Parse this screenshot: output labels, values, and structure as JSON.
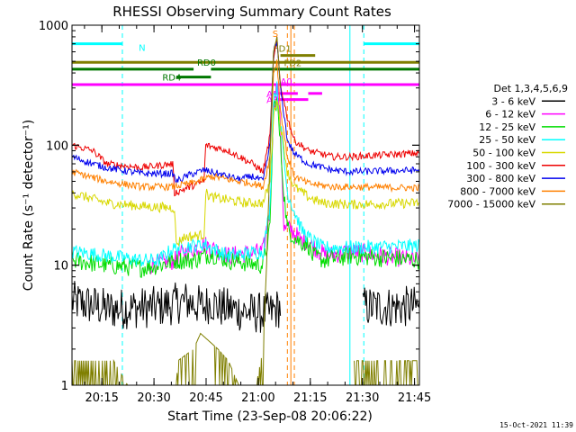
{
  "chart_data": {
    "type": "line",
    "title": "RHESSI Observing Summary Count Rates",
    "xlabel": "Start Time (23-Sep-08 20:06:22)",
    "ylabel": "Count Rate (s⁻¹ detector⁻¹)",
    "yscale": "log",
    "ylim": [
      1,
      1000
    ],
    "xlim_minutes_after_start": [
      0,
      100
    ],
    "yticks": [
      {
        "value": 1,
        "label": "1"
      },
      {
        "value": 10,
        "label": "10"
      },
      {
        "value": 100,
        "label": "100"
      },
      {
        "value": 1000,
        "label": "1000"
      }
    ],
    "xticks": [
      {
        "minute": 8.6,
        "label": "20:15"
      },
      {
        "minute": 23.6,
        "label": "20:30"
      },
      {
        "minute": 38.6,
        "label": "20:45"
      },
      {
        "minute": 53.6,
        "label": "21:00"
      },
      {
        "minute": 68.6,
        "label": "21:15"
      },
      {
        "minute": 83.6,
        "label": "21:30"
      },
      {
        "minute": 98.6,
        "label": "21:45"
      }
    ],
    "timestamp": "15-Oct-2021 11:39",
    "legend": {
      "placement": "right",
      "title": "Det 1,3,4,5,6,9",
      "entries": [
        {
          "label": "3 - 6 keV",
          "color": "#000000"
        },
        {
          "label": "6 - 12 keV",
          "color": "#ff00ff"
        },
        {
          "label": "12 - 25 keV",
          "color": "#00dd00"
        },
        {
          "label": "25 - 50 keV",
          "color": "#00ffff"
        },
        {
          "label": "50 - 100 keV",
          "color": "#d8d800"
        },
        {
          "label": "100 - 300 keV",
          "color": "#ee0000"
        },
        {
          "label": "300 - 800 keV",
          "color": "#0000ee"
        },
        {
          "label": "800 - 7000 keV",
          "color": "#ff8000"
        },
        {
          "label": "7000 - 15000 keV",
          "color": "#7f7f00"
        }
      ]
    },
    "series": [
      {
        "name": "3 - 6 keV",
        "color": "#000000",
        "noise": 1.5,
        "noise_from": 0,
        "points": [
          [
            0,
            5
          ],
          [
            8,
            4.5
          ],
          [
            10,
            4.3
          ],
          [
            25,
            4.5
          ],
          [
            33,
            5
          ],
          [
            38,
            4.5
          ],
          [
            40,
            5
          ],
          [
            42,
            4.5
          ],
          [
            52,
            4
          ],
          [
            54,
            4
          ],
          [
            57,
            4
          ],
          [
            60,
            4.5
          ],
          [
            66.5,
            null
          ],
          [
            83,
            null
          ],
          [
            83.5,
            4.5
          ],
          [
            100,
            4.5
          ]
        ]
      },
      {
        "name": "6 - 12 keV",
        "color": "#ff00ff",
        "noise": 1.2,
        "noise_from": 22,
        "points": [
          [
            22,
            10
          ],
          [
            30,
            11
          ],
          [
            30.5,
            12
          ],
          [
            38,
            15
          ],
          [
            40,
            14
          ],
          [
            45,
            12
          ],
          [
            55,
            13
          ],
          [
            57,
            30
          ],
          [
            58,
            200
          ],
          [
            59,
            330
          ],
          [
            60,
            150
          ],
          [
            61,
            20
          ],
          [
            63,
            20
          ],
          [
            66,
            16
          ],
          [
            68,
            16
          ],
          [
            68.5,
            15
          ],
          [
            73,
            12
          ],
          [
            80,
            13
          ],
          [
            100,
            11
          ]
        ]
      },
      {
        "name": "12 - 25 keV",
        "color": "#00dd00",
        "noise": 1.2,
        "noise_from": 0,
        "points": [
          [
            0,
            11
          ],
          [
            10,
            10
          ],
          [
            20,
            9.5
          ],
          [
            25,
            10
          ],
          [
            30,
            11
          ],
          [
            35,
            11
          ],
          [
            40,
            12.5
          ],
          [
            45,
            11
          ],
          [
            55,
            10
          ],
          [
            57,
            20
          ],
          [
            58,
            200
          ],
          [
            59,
            240
          ],
          [
            60,
            100
          ],
          [
            61,
            40
          ],
          [
            62,
            20
          ],
          [
            65,
            16
          ],
          [
            68,
            15
          ],
          [
            69,
            12
          ],
          [
            73,
            11
          ],
          [
            80,
            12
          ],
          [
            100,
            11
          ]
        ]
      },
      {
        "name": "25 - 50 keV",
        "color": "#00ffff",
        "noise": 1.15,
        "noise_from": 0,
        "points": [
          [
            0,
            13
          ],
          [
            10,
            12
          ],
          [
            20,
            11
          ],
          [
            25,
            11
          ],
          [
            28,
            13
          ],
          [
            30,
            14
          ],
          [
            38,
            15
          ],
          [
            40,
            14
          ],
          [
            45,
            12
          ],
          [
            55,
            13
          ],
          [
            57,
            30
          ],
          [
            58,
            250
          ],
          [
            59,
            300
          ],
          [
            60,
            150
          ],
          [
            62,
            40
          ],
          [
            66,
            20
          ],
          [
            68,
            17
          ],
          [
            72,
            14
          ],
          [
            80,
            14
          ],
          [
            100,
            14.5
          ]
        ]
      },
      {
        "name": "50 - 100 keV",
        "color": "#d8d800",
        "noise": 1.1,
        "noise_from": 0,
        "points": [
          [
            0,
            40
          ],
          [
            10,
            33
          ],
          [
            20,
            31
          ],
          [
            29.5,
            30
          ],
          [
            30,
            15
          ],
          [
            32,
            17
          ],
          [
            38,
            18
          ],
          [
            38.5,
            40
          ],
          [
            40,
            37
          ],
          [
            50,
            33
          ],
          [
            55,
            33
          ],
          [
            57,
            50
          ],
          [
            58,
            170
          ],
          [
            59,
            250
          ],
          [
            60,
            150
          ],
          [
            62,
            60
          ],
          [
            64,
            45
          ],
          [
            68,
            37
          ],
          [
            72,
            33
          ],
          [
            80,
            32
          ],
          [
            100,
            33
          ]
        ]
      },
      {
        "name": "100 - 300 keV",
        "color": "#ee0000",
        "noise": 1.07,
        "noise_from": 0,
        "points": [
          [
            0,
            100
          ],
          [
            6,
            90
          ],
          [
            10,
            70
          ],
          [
            20,
            65
          ],
          [
            29,
            70
          ],
          [
            29.5,
            40
          ],
          [
            34,
            45
          ],
          [
            38,
            50
          ],
          [
            38.5,
            100
          ],
          [
            45,
            90
          ],
          [
            52,
            70
          ],
          [
            55,
            60
          ],
          [
            57,
            120
          ],
          [
            58,
            500
          ],
          [
            59,
            750
          ],
          [
            60,
            320
          ],
          [
            62,
            170
          ],
          [
            64,
            110
          ],
          [
            68,
            90
          ],
          [
            75,
            80
          ],
          [
            80,
            80
          ],
          [
            100,
            86
          ]
        ]
      },
      {
        "name": "300 - 800 keV",
        "color": "#0000ee",
        "noise": 1.07,
        "noise_from": 0,
        "points": [
          [
            0,
            80
          ],
          [
            6,
            70
          ],
          [
            10,
            65
          ],
          [
            20,
            58
          ],
          [
            29,
            58
          ],
          [
            30,
            50
          ],
          [
            34,
            57
          ],
          [
            38,
            62
          ],
          [
            40,
            60
          ],
          [
            48,
            52
          ],
          [
            52,
            55
          ],
          [
            55,
            50
          ],
          [
            57,
            100
          ],
          [
            58,
            600
          ],
          [
            59,
            720
          ],
          [
            60,
            300
          ],
          [
            62,
            110
          ],
          [
            64,
            85
          ],
          [
            68,
            70
          ],
          [
            75,
            62
          ],
          [
            80,
            60
          ],
          [
            100,
            62
          ]
        ]
      },
      {
        "name": "800 - 7000 keV",
        "color": "#ff8000",
        "noise": 1.07,
        "noise_from": 0,
        "points": [
          [
            0,
            60
          ],
          [
            10,
            50
          ],
          [
            20,
            45
          ],
          [
            29,
            45
          ],
          [
            34,
            48
          ],
          [
            38,
            52
          ],
          [
            40,
            55
          ],
          [
            48,
            50
          ],
          [
            52,
            48
          ],
          [
            55,
            45
          ],
          [
            57,
            80
          ],
          [
            58,
            400
          ],
          [
            59,
            500
          ],
          [
            60,
            200
          ],
          [
            62,
            80
          ],
          [
            64,
            55
          ],
          [
            68,
            48
          ],
          [
            75,
            45
          ],
          [
            80,
            45
          ],
          [
            100,
            44
          ]
        ]
      },
      {
        "name": "7000 - 15000 keV",
        "color": "#7f7f00",
        "noise": 1.0,
        "noise_from": 0,
        "points": [
          [
            0,
            1.6
          ],
          [
            12,
            1.6
          ],
          [
            16,
            1
          ],
          [
            30,
            1
          ],
          [
            30.5,
            1.6
          ],
          [
            35,
            2
          ],
          [
            37,
            2.7
          ],
          [
            42,
            2
          ],
          [
            45,
            1.6
          ],
          [
            48,
            1
          ],
          [
            53,
            1
          ],
          [
            55,
            2
          ],
          [
            56,
            10
          ],
          [
            57,
            80
          ],
          [
            58,
            600
          ],
          [
            59,
            800
          ],
          [
            60,
            300
          ],
          [
            61,
            null
          ],
          [
            80,
            null
          ],
          [
            81,
            1.6
          ],
          [
            100,
            1.6
          ]
        ]
      }
    ],
    "state_bars": [
      {
        "label": "N",
        "color": "#00ffff",
        "y": 700,
        "segments": [
          [
            0,
            14.5
          ],
          [
            84,
            100
          ]
        ]
      },
      {
        "label": "FD1",
        "color": "#7f7f00",
        "y": 560,
        "segments": [
          [
            60,
            70
          ]
        ]
      },
      {
        "label": "FD2",
        "color": "#7f7f00",
        "y": 490,
        "segments": [
          [
            0,
            100
          ]
        ]
      },
      {
        "label": "RD0",
        "color": "#007700",
        "y": 430,
        "segments": [
          [
            0,
            35
          ],
          [
            40,
            100
          ]
        ]
      },
      {
        "label": "RD4",
        "color": "#007700",
        "y": 370,
        "segments": [
          [
            30,
            40
          ]
        ]
      },
      {
        "label": "A0",
        "color": "#ff00ff",
        "y": 320,
        "segments": [
          [
            0,
            100
          ]
        ]
      },
      {
        "label": "A1",
        "color": "#ff00ff",
        "y": 270,
        "segments": [
          [
            58,
            65
          ],
          [
            68,
            72
          ]
        ]
      },
      {
        "label": "A3",
        "color": "#ff00ff",
        "y": 240,
        "segments": [
          [
            59,
            68
          ]
        ]
      }
    ],
    "bar_tags": [
      {
        "label": "S",
        "color": "#ff8000",
        "minute": 58.5,
        "y": 800
      }
    ],
    "vertical_markers": [
      {
        "color": "#00ffff",
        "style": "dashed",
        "minute": 14.5
      },
      {
        "color": "#00ffff",
        "style": "dashed",
        "minute": 84
      },
      {
        "color": "#00ffff",
        "style": "dashed",
        "minute": 100
      },
      {
        "color": "#00ffff",
        "style": "solid",
        "minute": 0
      },
      {
        "color": "#00ffff",
        "style": "solid",
        "minute": 80
      },
      {
        "color": "#ff8000",
        "style": "dashed",
        "minute": 62
      },
      {
        "color": "#ff8000",
        "style": "dashed",
        "minute": 64
      },
      {
        "color": "#ff8000",
        "style": "solid",
        "minute": 63
      }
    ]
  }
}
